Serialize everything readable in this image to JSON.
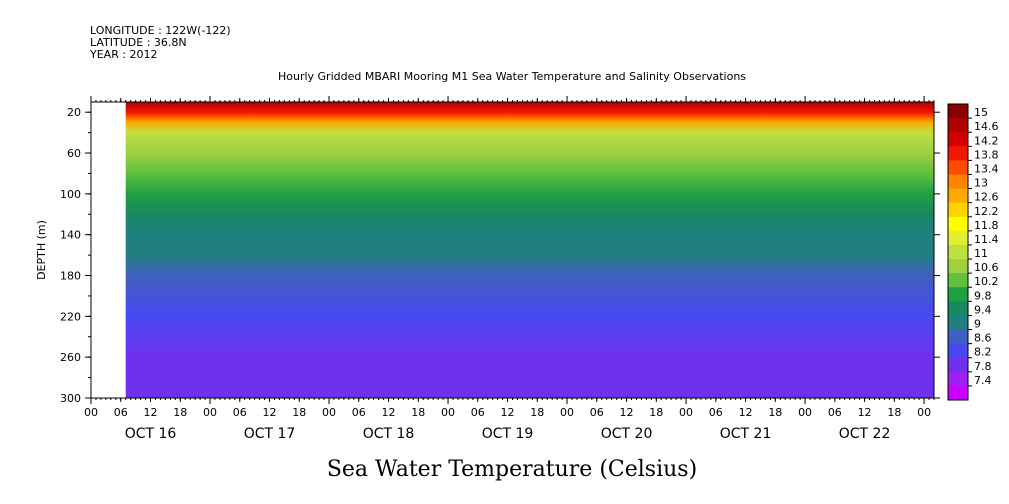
{
  "header": {
    "longitude": "LONGITUDE : 122W(-122)",
    "latitude": "LATITUDE : 36.8N",
    "year": "YEAR : 2012"
  },
  "chart_data": {
    "type": "heatmap",
    "title": "Hourly Gridded MBARI Mooring M1 Sea Water Temperature and Salinity Observations",
    "xlabel": "Sea Water Temperature (Celsius)",
    "ylabel": "DEPTH (m)",
    "x_hour_ticks": [
      "00",
      "06",
      "12",
      "18",
      "00",
      "06",
      "12",
      "18",
      "00",
      "06",
      "12",
      "18",
      "00",
      "06",
      "12",
      "18",
      "00",
      "06",
      "12",
      "18",
      "00",
      "06",
      "12",
      "18",
      "00",
      "06",
      "12",
      "18",
      "00"
    ],
    "x_day_labels": [
      "OCT 16",
      "OCT 17",
      "OCT 18",
      "OCT 19",
      "OCT 20",
      "OCT 21",
      "OCT 22"
    ],
    "y_ticks": [
      20,
      60,
      100,
      140,
      180,
      220,
      260,
      300
    ],
    "ylim": [
      300,
      10
    ],
    "xlim_hours": [
      0,
      170
    ],
    "data_start_hour": 7,
    "colorbar": {
      "levels": [
        "15",
        "14.6",
        "14.2",
        "13.8",
        "13.4",
        "13",
        "12.6",
        "12.2",
        "11.8",
        "11.4",
        "11",
        "10.6",
        "10.2",
        "9.8",
        "9.4",
        "9",
        "8.6",
        "8.2",
        "7.8",
        "7.4"
      ],
      "colors": [
        "#8b0000",
        "#b00000",
        "#d20000",
        "#f01800",
        "#ff4a00",
        "#ff8200",
        "#ffaa00",
        "#ffd200",
        "#ffff00",
        "#e0f030",
        "#c0e040",
        "#9ed040",
        "#60c040",
        "#20a040",
        "#188860",
        "#208080",
        "#4060c0",
        "#4848f0",
        "#7030f0",
        "#a020f0",
        "#c800ff"
      ]
    },
    "depth_profile": [
      {
        "depth": 10,
        "temp": 14.6
      },
      {
        "depth": 20,
        "temp": 14.0
      },
      {
        "depth": 30,
        "temp": 12.6
      },
      {
        "depth": 40,
        "temp": 11.2
      },
      {
        "depth": 60,
        "temp": 10.8
      },
      {
        "depth": 80,
        "temp": 10.4
      },
      {
        "depth": 100,
        "temp": 10.0
      },
      {
        "depth": 120,
        "temp": 9.7
      },
      {
        "depth": 140,
        "temp": 9.3
      },
      {
        "depth": 160,
        "temp": 9.0
      },
      {
        "depth": 180,
        "temp": 8.8
      },
      {
        "depth": 220,
        "temp": 8.4
      },
      {
        "depth": 260,
        "temp": 8.1
      },
      {
        "depth": 300,
        "temp": 7.8
      }
    ],
    "grid": false
  }
}
